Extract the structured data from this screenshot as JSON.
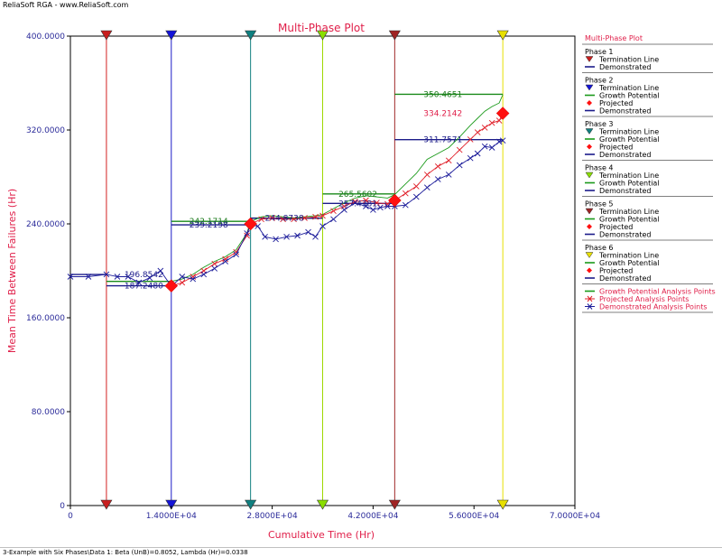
{
  "window": {
    "title": "ReliaSoft RGA - www.ReliaSoft.com"
  },
  "status": {
    "text": "3-Example with Six Phases\\Data 1: Beta (UnB)=0.8052, Lambda (Hr)=0.0338"
  },
  "chart_data": {
    "type": "line",
    "title": "Multi-Phase Plot",
    "xlabel": "Cumulative Time (Hr)",
    "ylabel": "Mean Time Between Failures (Hr)",
    "xlim": [
      0,
      70000
    ],
    "ylim": [
      0,
      400
    ],
    "x_ticks": [
      0,
      14000,
      28000,
      42000,
      56000,
      70000
    ],
    "x_tick_labels": [
      "0",
      "1.4000E+04",
      "2.8000E+04",
      "4.2000E+04",
      "5.6000E+04",
      "7.0000E+04"
    ],
    "y_ticks": [
      0,
      80,
      160,
      240,
      320,
      400
    ],
    "y_tick_labels": [
      "0",
      "80.0000",
      "160.0000",
      "240.0000",
      "320.0000",
      "400.0000"
    ],
    "grid": false,
    "legend_position": "right",
    "phases": [
      {
        "name": "Phase 1",
        "end": 5000,
        "color": "#d42020",
        "marker": "#c81e1e",
        "demonstrated": 196.8542,
        "growth_potential": null,
        "projected": null
      },
      {
        "name": "Phase 2",
        "end": 14000,
        "color": "#1c1cc8",
        "marker": "#1414d8",
        "demonstrated": 187.248,
        "growth_potential": 191.0,
        "projected": 187.2
      },
      {
        "name": "Phase 3",
        "end": 25000,
        "color": "#128080",
        "marker": "#108080",
        "demonstrated": 239.2198,
        "growth_potential": 242.1714,
        "projected": 240.0
      },
      {
        "name": "Phase 4",
        "end": 35000,
        "color": "#9ed800",
        "marker": "#8ade00",
        "demonstrated": 244.8738,
        "growth_potential": 244.9,
        "projected": null
      },
      {
        "name": "Phase 5",
        "end": 45000,
        "color": "#a02828",
        "marker": "#a02424",
        "demonstrated": 257.4381,
        "growth_potential": 265.5602,
        "projected": 260.0
      },
      {
        "name": "Phase 6",
        "end": 60000,
        "color": "#e8e000",
        "marker": "#e8e000",
        "demonstrated": 311.7571,
        "growth_potential": 350.4651,
        "projected": 334.2142
      }
    ],
    "value_labels": [
      {
        "text": "196.8542",
        "x": 7500,
        "y": 196.8542,
        "color": "#1c1c8a"
      },
      {
        "text": "187.2480",
        "x": 7500,
        "y": 187.248,
        "color": "#1c1c8a"
      },
      {
        "text": "242.1714",
        "x": 16500,
        "y": 242.1714,
        "color": "#1a7a1a"
      },
      {
        "text": "239.2198",
        "x": 16500,
        "y": 239.2198,
        "color": "#1c1c8a"
      },
      {
        "text": "244.8738",
        "x": 27000,
        "y": 244.8738,
        "color": "#1c1c8a"
      },
      {
        "text": "265.5602",
        "x": 37200,
        "y": 265.5602,
        "color": "#1a7a1a"
      },
      {
        "text": "257.4381",
        "x": 37200,
        "y": 257.4381,
        "color": "#1c1c8a"
      },
      {
        "text": "350.4651",
        "x": 49000,
        "y": 350.4651,
        "color": "#1a7a1a"
      },
      {
        "text": "334.2142",
        "x": 49000,
        "y": 334.2142,
        "color": "#e0204a"
      },
      {
        "text": "311.7571",
        "x": 49000,
        "y": 311.7571,
        "color": "#1c1c8a"
      }
    ],
    "series": [
      {
        "name": "Growth Potential Analysis Points",
        "color": "#1a9a1a",
        "points": [
          [
            14000,
            191
          ],
          [
            15500,
            193
          ],
          [
            17000,
            197
          ],
          [
            18500,
            203
          ],
          [
            20000,
            208
          ],
          [
            21500,
            212
          ],
          [
            23000,
            218
          ],
          [
            24500,
            232
          ],
          [
            25000,
            242
          ],
          [
            26500,
            246
          ],
          [
            28000,
            247
          ],
          [
            29500,
            246
          ],
          [
            31000,
            245
          ],
          [
            32500,
            246
          ],
          [
            34000,
            247
          ],
          [
            35000,
            248
          ],
          [
            36500,
            253
          ],
          [
            38000,
            258
          ],
          [
            39500,
            262
          ],
          [
            41000,
            264
          ],
          [
            42500,
            263
          ],
          [
            44000,
            262
          ],
          [
            45000,
            265
          ],
          [
            46500,
            274
          ],
          [
            48000,
            283
          ],
          [
            49500,
            295
          ],
          [
            51000,
            300
          ],
          [
            52500,
            305
          ],
          [
            54000,
            314
          ],
          [
            55500,
            324
          ],
          [
            56500,
            330
          ],
          [
            57500,
            336
          ],
          [
            58500,
            340
          ],
          [
            59500,
            343
          ],
          [
            60000,
            350
          ]
        ]
      },
      {
        "name": "Projected Analysis Points",
        "color": "#e0202a",
        "points": [
          [
            14000,
            187
          ],
          [
            15500,
            190
          ],
          [
            17000,
            195
          ],
          [
            18500,
            200
          ],
          [
            20000,
            206
          ],
          [
            21500,
            210
          ],
          [
            23000,
            216
          ],
          [
            24500,
            230
          ],
          [
            25000,
            240
          ],
          [
            26500,
            244
          ],
          [
            28000,
            245
          ],
          [
            29500,
            244
          ],
          [
            31000,
            244
          ],
          [
            32500,
            245
          ],
          [
            34000,
            246
          ],
          [
            35000,
            247
          ],
          [
            36500,
            251
          ],
          [
            38000,
            255
          ],
          [
            39500,
            259
          ],
          [
            41000,
            260
          ],
          [
            42500,
            258
          ],
          [
            44000,
            257
          ],
          [
            45000,
            260
          ],
          [
            46500,
            266
          ],
          [
            48000,
            272
          ],
          [
            49500,
            282
          ],
          [
            51000,
            289
          ],
          [
            52500,
            294
          ],
          [
            54000,
            303
          ],
          [
            55500,
            312
          ],
          [
            56500,
            318
          ],
          [
            57500,
            322
          ],
          [
            58500,
            326
          ],
          [
            59500,
            328
          ],
          [
            60000,
            334
          ]
        ]
      },
      {
        "name": "Demonstrated Analysis Points",
        "color": "#1c1c9a",
        "points": [
          [
            0,
            195
          ],
          [
            2500,
            195
          ],
          [
            5000,
            197
          ],
          [
            6500,
            195
          ],
          [
            8000,
            195
          ],
          [
            9500,
            190
          ],
          [
            11000,
            194
          ],
          [
            12500,
            200
          ],
          [
            14000,
            187
          ],
          [
            15500,
            195
          ],
          [
            17000,
            193
          ],
          [
            18500,
            197
          ],
          [
            20000,
            202
          ],
          [
            21500,
            208
          ],
          [
            23000,
            214
          ],
          [
            24500,
            232
          ],
          [
            25000,
            239
          ],
          [
            26000,
            238
          ],
          [
            27000,
            229
          ],
          [
            28500,
            227
          ],
          [
            30000,
            229
          ],
          [
            31500,
            230
          ],
          [
            33000,
            233
          ],
          [
            34000,
            229
          ],
          [
            35000,
            238
          ],
          [
            36500,
            244
          ],
          [
            38000,
            252
          ],
          [
            39500,
            258
          ],
          [
            41000,
            255
          ],
          [
            42000,
            252
          ],
          [
            43000,
            254
          ],
          [
            44000,
            255
          ],
          [
            45000,
            255
          ],
          [
            46500,
            256
          ],
          [
            48000,
            263
          ],
          [
            49500,
            271
          ],
          [
            51000,
            278
          ],
          [
            52500,
            282
          ],
          [
            54000,
            290
          ],
          [
            55500,
            296
          ],
          [
            56500,
            300
          ],
          [
            57500,
            306
          ],
          [
            58500,
            305
          ],
          [
            59500,
            310
          ],
          [
            60000,
            311
          ]
        ]
      }
    ]
  },
  "legend": {
    "header": "Multi-Phase Plot",
    "termination_line": "Termination Line",
    "demonstrated": "Demonstrated",
    "growth_potential": "Growth Potential",
    "projected": "Projected",
    "gpa": "Growth Potential Analysis Points",
    "pap": "Projected Analysis Points",
    "dap": "Demonstrated Analysis Points"
  },
  "colors": {
    "axis_label": "#e0204a",
    "tick_label": "#2b2b9a",
    "demonstrated": "#1c1c8a",
    "growth": "#1a9a1a",
    "projected": "#e0202a"
  }
}
